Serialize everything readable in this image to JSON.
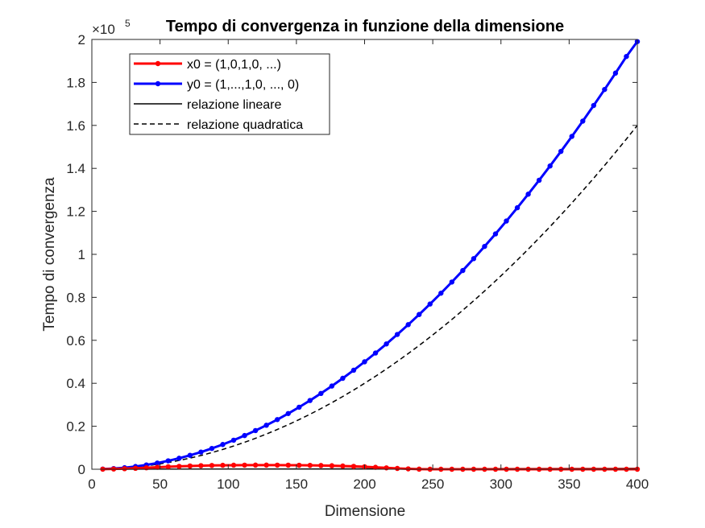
{
  "chart_data": {
    "type": "line",
    "title": "Tempo di convergenza in funzione della dimensione",
    "xlabel": "Dimensione",
    "ylabel": "Tempo di convergenza",
    "y_exponent_base": "×10",
    "y_exponent_power": "5",
    "xlim": [
      0,
      400
    ],
    "ylim": [
      0,
      200000
    ],
    "x_ticks": [
      0,
      50,
      100,
      150,
      200,
      250,
      300,
      350,
      400
    ],
    "y_ticks": [
      0,
      20000,
      40000,
      60000,
      80000,
      100000,
      120000,
      140000,
      160000,
      180000,
      200000
    ],
    "y_tick_labels": [
      "0",
      "0.2",
      "0.4",
      "0.6",
      "0.8",
      "1",
      "1.2",
      "1.4",
      "1.6",
      "1.8",
      "2"
    ],
    "x_tick_labels": [
      "0",
      "50",
      "100",
      "150",
      "200",
      "250",
      "300",
      "350",
      "400"
    ],
    "legend_position": "top-left",
    "grid": false,
    "series": [
      {
        "name": "x0 = (1,0,1,0, ...)",
        "color": "#ff0000",
        "marker": "dot",
        "style": "solid",
        "x": [
          8,
          16,
          24,
          32,
          40,
          48,
          56,
          64,
          72,
          80,
          88,
          96,
          104,
          112,
          120,
          128,
          136,
          144,
          152,
          160,
          168,
          176,
          184,
          192,
          200,
          208,
          216,
          224,
          232,
          240,
          248,
          256,
          264,
          272,
          280,
          288,
          296,
          304,
          312,
          320,
          328,
          336,
          344,
          352,
          360,
          368,
          376,
          384,
          392,
          400
        ],
        "y": [
          30,
          120,
          260,
          450,
          680,
          920,
          1150,
          1350,
          1520,
          1660,
          1760,
          1830,
          1880,
          1910,
          1920,
          1920,
          1910,
          1890,
          1860,
          1810,
          1740,
          1640,
          1510,
          1350,
          1150,
          900,
          640,
          380,
          180,
          50,
          0,
          0,
          0,
          0,
          0,
          0,
          0,
          0,
          0,
          0,
          0,
          0,
          0,
          0,
          0,
          0,
          0,
          0,
          0,
          0
        ]
      },
      {
        "name": "y0 = (1,...,1,0, ..., 0)",
        "color": "#0000ff",
        "marker": "dot",
        "style": "solid",
        "x": [
          8,
          16,
          24,
          32,
          40,
          48,
          56,
          64,
          72,
          80,
          88,
          96,
          104,
          112,
          120,
          128,
          136,
          144,
          152,
          160,
          168,
          176,
          184,
          192,
          200,
          208,
          216,
          224,
          232,
          240,
          248,
          256,
          264,
          272,
          280,
          288,
          296,
          304,
          312,
          320,
          328,
          336,
          344,
          352,
          360,
          368,
          376,
          384,
          392,
          400
        ],
        "y": [
          80,
          320,
          720,
          1280,
          2000,
          2880,
          3920,
          5120,
          6480,
          8000,
          9680,
          11520,
          13520,
          15680,
          18000,
          20480,
          23120,
          25920,
          28880,
          32000,
          35280,
          38720,
          42320,
          46080,
          50000,
          54080,
          58320,
          62720,
          67280,
          72000,
          76880,
          81920,
          87120,
          92480,
          98000,
          103680,
          109520,
          115520,
          121680,
          128000,
          134480,
          141120,
          147920,
          154880,
          162000,
          169280,
          176720,
          184320,
          192080,
          199000
        ]
      },
      {
        "name": "relazione lineare",
        "color": "#000000",
        "marker": "none",
        "style": "solid",
        "x": [
          8,
          400
        ],
        "y": [
          8,
          400
        ]
      },
      {
        "name": "relazione quadratica",
        "color": "#000000",
        "marker": "none",
        "style": "dashed",
        "x": [
          8,
          16,
          24,
          32,
          40,
          48,
          56,
          64,
          72,
          80,
          88,
          96,
          104,
          112,
          120,
          128,
          136,
          144,
          152,
          160,
          168,
          176,
          184,
          192,
          200,
          208,
          216,
          224,
          232,
          240,
          248,
          256,
          264,
          272,
          280,
          288,
          296,
          304,
          312,
          320,
          328,
          336,
          344,
          352,
          360,
          368,
          376,
          384,
          392,
          400
        ],
        "y": [
          64,
          256,
          576,
          1024,
          1600,
          2304,
          3136,
          4096,
          5184,
          6400,
          7744,
          9216,
          10816,
          12544,
          14400,
          16384,
          18496,
          20736,
          23104,
          25600,
          28224,
          30976,
          33856,
          36864,
          40000,
          43264,
          46656,
          50176,
          53824,
          57600,
          61504,
          65536,
          69696,
          73984,
          78400,
          82944,
          87616,
          92416,
          97344,
          102400,
          107584,
          112896,
          118336,
          123904,
          129600,
          135424,
          141376,
          147456,
          153664,
          160000
        ]
      }
    ]
  }
}
